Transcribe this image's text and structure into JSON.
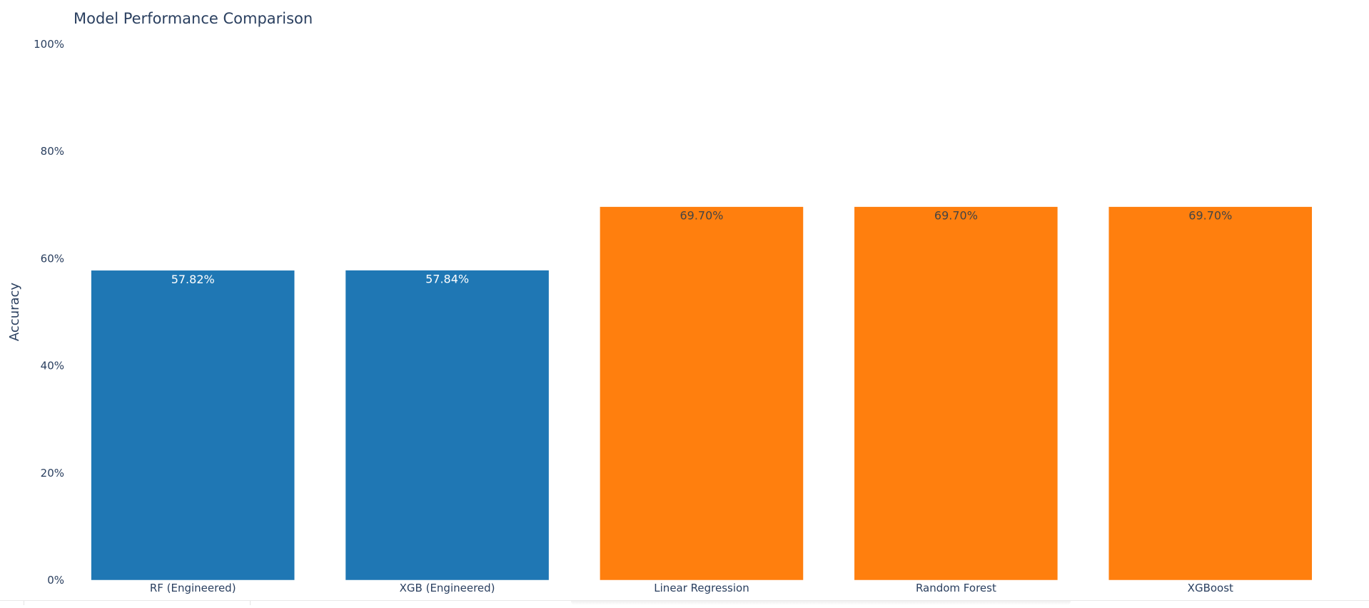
{
  "chart_data": {
    "type": "bar",
    "title": "Model Performance Comparison",
    "xlabel": "",
    "ylabel": "Accuracy",
    "ylim": [
      0,
      100
    ],
    "yticks": [
      "0%",
      "20%",
      "40%",
      "60%",
      "80%",
      "100%"
    ],
    "categories": [
      "RF (Engineered)",
      "XGB (Engineered)",
      "Linear Regression",
      "Random Forest",
      "XGBoost"
    ],
    "values": [
      57.82,
      57.84,
      69.7,
      69.7,
      69.7
    ],
    "data_labels": [
      "57.82%",
      "57.84%",
      "69.70%",
      "69.70%",
      "69.70%"
    ],
    "bar_colors": [
      "#1f77b4",
      "#1f77b4",
      "#ff7f0e",
      "#ff7f0e",
      "#ff7f0e"
    ],
    "label_colors": [
      "#ffffff",
      "#ffffff",
      "#444444",
      "#444444",
      "#444444"
    ],
    "grid": false,
    "legend": "none"
  }
}
